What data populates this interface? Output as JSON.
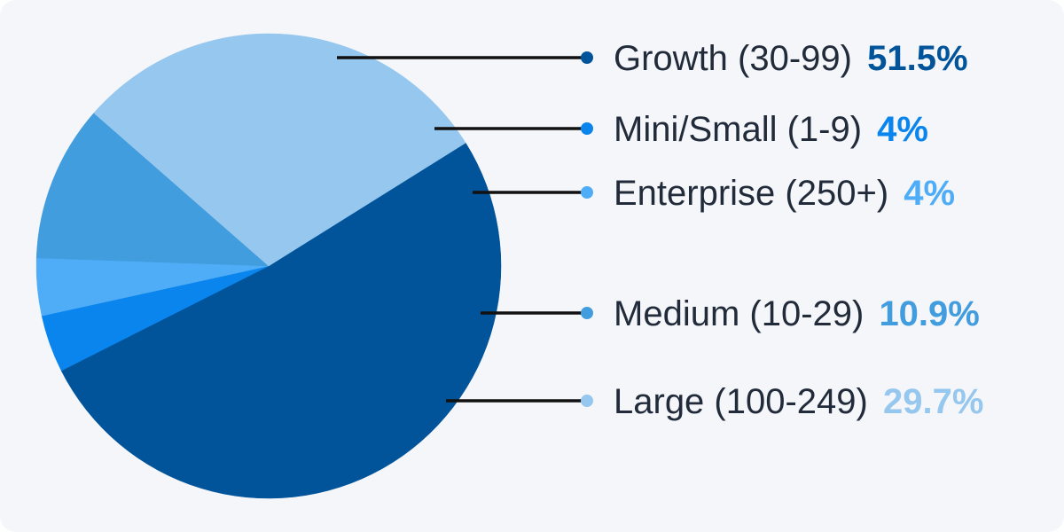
{
  "chart_data": {
    "type": "pie",
    "slices": [
      {
        "label": "Growth (30-99)",
        "value": 51.5,
        "value_label": "51.5%",
        "color": "#01549a"
      },
      {
        "label": "Mini/Small (1-9)",
        "value": 4,
        "value_label": "4%",
        "color": "#0a85ee"
      },
      {
        "label": "Enterprise (250+)",
        "value": 4,
        "value_label": "4%",
        "color": "#4fadf8"
      },
      {
        "label": "Medium (10-29)",
        "value": 10.9,
        "value_label": "10.9%",
        "color": "#429dde"
      },
      {
        "label": "Large (100-249)",
        "value": 29.7,
        "value_label": "29.7%",
        "color": "#96c7ee"
      }
    ],
    "legend_placement": "right"
  },
  "colors": {
    "background": "#f5f6fa",
    "leader_line": "#111111",
    "text": "#222b3a"
  }
}
